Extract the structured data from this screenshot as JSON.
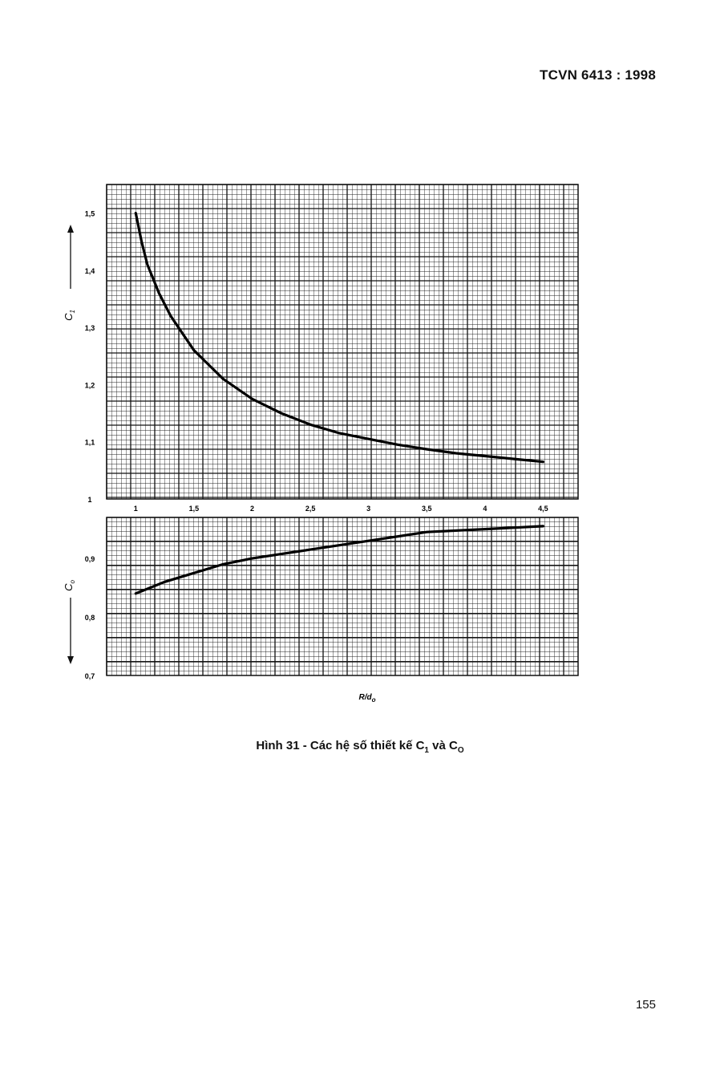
{
  "document": {
    "header": "TCVN 6413 : 1998",
    "caption_main": "Hình 31 - Các hệ số thiết kế C",
    "caption_sub1": "1",
    "caption_mid": " và C",
    "caption_sub2": "O",
    "page_number": "155"
  },
  "chart_data": [
    {
      "type": "line",
      "x_axis_label": "R/d",
      "x_axis_label_sub": "o",
      "x_ticks": [
        1,
        1.5,
        2,
        2.5,
        3,
        3.5,
        4,
        4.5
      ],
      "x_tick_labels": [
        "1",
        "1,5",
        "2",
        "2,5",
        "3",
        "3,5",
        "4",
        "4,5"
      ],
      "xlim": [
        0.75,
        4.8
      ],
      "ylabel": "C",
      "ylabel_sub": "1",
      "ylim": [
        1.0,
        1.55
      ],
      "y_ticks": [
        1.0,
        1.1,
        1.2,
        1.3,
        1.4,
        1.5
      ],
      "y_tick_labels": [
        "1",
        "1,1",
        "1,2",
        "1,3",
        "1,4",
        "1,5"
      ],
      "grid": true,
      "series": [
        {
          "x": [
            1.0,
            1.05,
            1.1,
            1.2,
            1.3,
            1.4,
            1.5,
            1.75,
            2.0,
            2.25,
            2.5,
            2.75,
            3.0,
            3.25,
            3.5,
            3.75,
            4.0,
            4.25,
            4.5
          ],
          "y": [
            1.5,
            1.45,
            1.41,
            1.36,
            1.32,
            1.29,
            1.26,
            1.21,
            1.175,
            1.15,
            1.13,
            1.115,
            1.105,
            1.095,
            1.087,
            1.08,
            1.075,
            1.07,
            1.065
          ]
        }
      ]
    },
    {
      "type": "line",
      "ylabel": "C",
      "ylabel_sub": "o",
      "ylim": [
        0.7,
        0.97
      ],
      "y_ticks": [
        0.7,
        0.8,
        0.9
      ],
      "y_tick_labels": [
        "0,7",
        "0,8",
        "0,9"
      ],
      "xlim": [
        0.75,
        4.8
      ],
      "grid": true,
      "series": [
        {
          "x": [
            1.0,
            1.25,
            1.5,
            1.75,
            2.0,
            2.5,
            3.0,
            3.5,
            4.0,
            4.5
          ],
          "y": [
            0.84,
            0.86,
            0.875,
            0.89,
            0.9,
            0.915,
            0.93,
            0.945,
            0.95,
            0.955
          ]
        }
      ]
    }
  ]
}
